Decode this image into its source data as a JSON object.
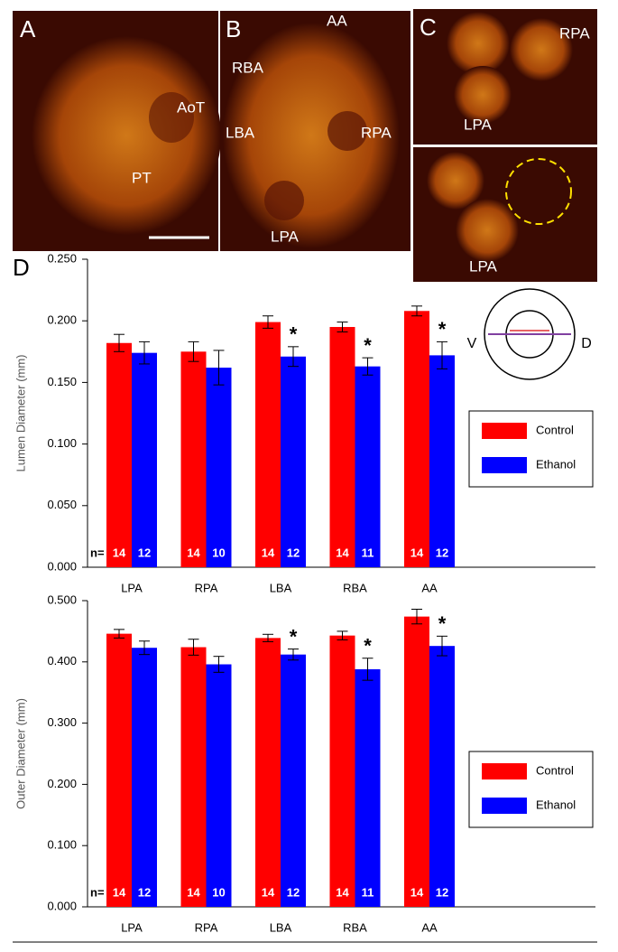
{
  "panels": [
    {
      "label": "A",
      "annotations": [
        "AoT",
        "PT"
      ]
    },
    {
      "label": "B",
      "annotations": [
        "AA",
        "RBA",
        "LBA",
        "RPA",
        "LPA"
      ]
    },
    {
      "label": "C",
      "annotations": [
        "RPA",
        "LPA",
        "LPA"
      ]
    }
  ],
  "chart_label": "D",
  "schematic": {
    "left": "V",
    "right": "D"
  },
  "chart_data": [
    {
      "type": "bar",
      "y_label": "Lumen Diameter (mm)",
      "categories": [
        "LPA",
        "RPA",
        "LBA",
        "RBA",
        "AA"
      ],
      "ylim": [
        0,
        0.25
      ],
      "yticks": [
        {
          "value": 0,
          "label": "0.000"
        },
        {
          "value": 0.05,
          "label": "0.050"
        },
        {
          "value": 0.1,
          "label": "0.100"
        },
        {
          "value": 0.15,
          "label": "0.150"
        },
        {
          "value": 0.2,
          "label": "0.200"
        },
        {
          "value": 0.25,
          "label": "0.250"
        }
      ],
      "legend": "right",
      "n_label": "n=",
      "series": [
        {
          "name": "Control",
          "color": "#ff0000",
          "values": [
            0.182,
            0.175,
            0.199,
            0.195,
            0.208
          ],
          "errors": [
            0.007,
            0.008,
            0.005,
            0.004,
            0.004
          ],
          "n": [
            14,
            14,
            14,
            14,
            14
          ]
        },
        {
          "name": "Ethanol",
          "color": "#0000ff",
          "values": [
            0.174,
            0.162,
            0.171,
            0.163,
            0.172
          ],
          "errors": [
            0.009,
            0.014,
            0.008,
            0.007,
            0.011
          ],
          "n": [
            12,
            10,
            12,
            11,
            12
          ]
        }
      ],
      "significance": [
        null,
        null,
        "*",
        "*",
        "*"
      ]
    },
    {
      "type": "bar",
      "y_label": "Outer Diameter (mm)",
      "categories": [
        "LPA",
        "RPA",
        "LBA",
        "RBA",
        "AA"
      ],
      "ylim": [
        0,
        0.5
      ],
      "yticks": [
        {
          "value": 0,
          "label": "0.000"
        },
        {
          "value": 0.1,
          "label": "0.100"
        },
        {
          "value": 0.2,
          "label": "0.200"
        },
        {
          "value": 0.3,
          "label": "0.300"
        },
        {
          "value": 0.4,
          "label": "0.400"
        },
        {
          "value": 0.5,
          "label": "0.500"
        }
      ],
      "legend": "right",
      "n_label": "n=",
      "series": [
        {
          "name": "Control",
          "color": "#ff0000",
          "values": [
            0.446,
            0.424,
            0.439,
            0.443,
            0.474
          ],
          "errors": [
            0.007,
            0.013,
            0.006,
            0.007,
            0.012
          ],
          "n": [
            14,
            14,
            14,
            14,
            14
          ]
        },
        {
          "name": "Ethanol",
          "color": "#0000ff",
          "values": [
            0.423,
            0.396,
            0.412,
            0.388,
            0.426
          ],
          "errors": [
            0.011,
            0.013,
            0.009,
            0.018,
            0.016
          ],
          "n": [
            12,
            10,
            12,
            11,
            12
          ]
        }
      ],
      "significance": [
        null,
        null,
        "*",
        "*",
        "*"
      ]
    }
  ]
}
